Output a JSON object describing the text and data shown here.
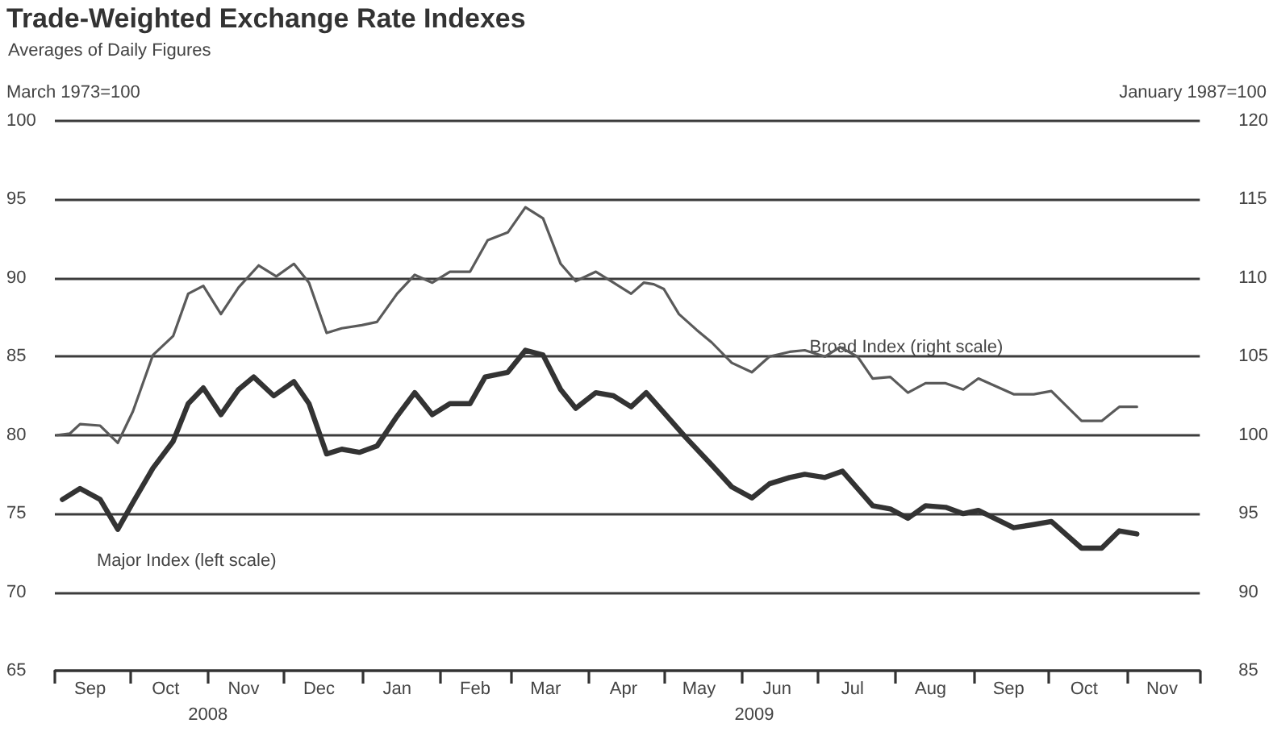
{
  "chart_data": {
    "type": "line",
    "title": "Trade-Weighted Exchange Rate Indexes",
    "subtitle": "Averages of Daily Figures",
    "ylabel": "March 1973=100",
    "y2label": "January 1987=100",
    "annotations": [
      "2008",
      "2009"
    ],
    "xlim": [
      "2008-09-01",
      "2009-11-30"
    ],
    "xticks": [
      {
        "value": "2008-09-01",
        "label": null
      },
      {
        "value": "2008-09-15",
        "label": "Sep"
      },
      {
        "value": "2008-10-01",
        "label": null
      },
      {
        "value": "2008-10-15",
        "label": "Oct"
      },
      {
        "value": "2008-11-01",
        "label": null
      },
      {
        "value": "2008-11-15",
        "label": "Nov"
      },
      {
        "value": "2008-12-01",
        "label": null
      },
      {
        "value": "2008-12-15",
        "label": "Dec"
      },
      {
        "value": "2009-01-01",
        "label": null
      },
      {
        "value": "2009-01-15",
        "label": "Jan"
      },
      {
        "value": "2009-02-01",
        "label": null
      },
      {
        "value": "2009-02-15",
        "label": "Feb"
      },
      {
        "value": "2009-03-01",
        "label": null
      },
      {
        "value": "2009-03-15",
        "label": "Mar"
      },
      {
        "value": "2009-04-01",
        "label": null
      },
      {
        "value": "2009-04-15",
        "label": "Apr"
      },
      {
        "value": "2009-05-01",
        "label": null
      },
      {
        "value": "2009-05-15",
        "label": "May"
      },
      {
        "value": "2009-06-01",
        "label": null
      },
      {
        "value": "2009-06-15",
        "label": "Jun"
      },
      {
        "value": "2009-07-01",
        "label": null
      },
      {
        "value": "2009-07-15",
        "label": "Jul"
      },
      {
        "value": "2009-08-01",
        "label": null
      },
      {
        "value": "2009-08-15",
        "label": "Aug"
      },
      {
        "value": "2009-09-01",
        "label": null
      },
      {
        "value": "2009-09-15",
        "label": "Sep"
      },
      {
        "value": "2009-10-01",
        "label": null
      },
      {
        "value": "2009-10-15",
        "label": "Oct"
      },
      {
        "value": "2009-11-01",
        "label": null
      },
      {
        "value": "2009-11-15",
        "label": "Nov"
      },
      {
        "value": "2009-11-30",
        "label": null
      }
    ],
    "ylim": [
      65,
      100
    ],
    "yticks": [
      65,
      70,
      75,
      80,
      85,
      90,
      95,
      100
    ],
    "y2lim": [
      85,
      120
    ],
    "y2ticks": [
      85,
      90,
      95,
      100,
      105,
      110,
      115,
      120
    ],
    "grid": "y",
    "legend": false,
    "marker": "none",
    "line_style": "solid",
    "series": [
      {
        "name": "Major Index (left scale)",
        "color": "#333333",
        "x": [
          "2008-09-04",
          "2008-09-11",
          "2008-09-19",
          "2008-09-26",
          "2008-10-02",
          "2008-10-10",
          "2008-10-18",
          "2008-10-24",
          "2008-10-30",
          "2008-11-06",
          "2008-11-13",
          "2008-11-19",
          "2008-11-27",
          "2008-12-05",
          "2008-12-11",
          "2008-12-18",
          "2008-12-24",
          "2008-12-31",
          "2009-01-07",
          "2009-01-15",
          "2009-01-22",
          "2009-01-29",
          "2009-02-05",
          "2009-02-13",
          "2009-02-19",
          "2009-02-28",
          "2009-03-07",
          "2009-03-14",
          "2009-03-21",
          "2009-03-27",
          "2009-04-04",
          "2009-04-11",
          "2009-04-18",
          "2009-04-24",
          "2009-05-10",
          "2009-05-20",
          "2009-05-28",
          "2009-06-05",
          "2009-06-12",
          "2009-06-20",
          "2009-06-26",
          "2009-07-04",
          "2009-07-11",
          "2009-07-23",
          "2009-07-30",
          "2009-08-06",
          "2009-08-13",
          "2009-08-21",
          "2009-08-28",
          "2009-09-03",
          "2009-09-17",
          "2009-09-25",
          "2009-10-02",
          "2009-10-14",
          "2009-10-22",
          "2009-10-29",
          "2009-11-05"
        ],
        "values": [
          75.9,
          76.6,
          75.9,
          74.0,
          75.7,
          77.9,
          79.6,
          82.0,
          83.0,
          81.3,
          82.9,
          83.7,
          82.5,
          83.4,
          82.0,
          78.8,
          79.1,
          78.9,
          79.3,
          81.2,
          82.7,
          81.3,
          82.0,
          82.0,
          83.7,
          84.0,
          85.4,
          85.1,
          82.9,
          81.7,
          82.7,
          82.5,
          81.8,
          82.7,
          79.8,
          78.1,
          76.7,
          76.0,
          76.9,
          77.3,
          77.5,
          77.3,
          77.7,
          75.5,
          75.3,
          74.7,
          75.5,
          75.4,
          75.0,
          75.2,
          74.1,
          74.3,
          74.5,
          72.8,
          72.8,
          73.9,
          73.7
        ]
      },
      {
        "name": "Broad Index (right scale)",
        "color": "#5a5a5a",
        "axis": "y2",
        "x": [
          "2008-09-02",
          "2008-09-07",
          "2008-09-11",
          "2008-09-19",
          "2008-09-26",
          "2008-10-02",
          "2008-10-10",
          "2008-10-18",
          "2008-10-24",
          "2008-10-30",
          "2008-11-06",
          "2008-11-13",
          "2008-11-21",
          "2008-11-28",
          "2008-12-05",
          "2008-12-11",
          "2008-12-18",
          "2008-12-24",
          "2009-01-01",
          "2009-01-07",
          "2009-01-15",
          "2009-01-22",
          "2009-01-29",
          "2009-02-05",
          "2009-02-13",
          "2009-02-20",
          "2009-02-28",
          "2009-03-07",
          "2009-03-14",
          "2009-03-21",
          "2009-03-27",
          "2009-04-04",
          "2009-04-11",
          "2009-04-18",
          "2009-04-23",
          "2009-04-27",
          "2009-05-01",
          "2009-05-07",
          "2009-05-14",
          "2009-05-20",
          "2009-05-28",
          "2009-06-05",
          "2009-06-12",
          "2009-06-20",
          "2009-06-26",
          "2009-07-04",
          "2009-07-10",
          "2009-07-17",
          "2009-07-23",
          "2009-07-30",
          "2009-08-06",
          "2009-08-13",
          "2009-08-21",
          "2009-08-28",
          "2009-09-03",
          "2009-09-17",
          "2009-09-25",
          "2009-10-02",
          "2009-10-14",
          "2009-10-22",
          "2009-10-29",
          "2009-11-05"
        ],
        "values": [
          100.0,
          100.1,
          100.7,
          100.6,
          99.5,
          101.5,
          105.1,
          106.3,
          109.0,
          109.5,
          107.7,
          109.4,
          110.8,
          110.1,
          110.9,
          109.7,
          106.5,
          106.8,
          107.0,
          107.2,
          109.0,
          110.2,
          109.7,
          110.4,
          110.4,
          112.4,
          112.9,
          114.5,
          113.8,
          110.9,
          109.8,
          110.4,
          109.7,
          109.0,
          109.7,
          109.6,
          109.3,
          107.7,
          106.7,
          105.9,
          104.6,
          104.0,
          105.0,
          105.3,
          105.4,
          105.0,
          105.6,
          105.0,
          103.6,
          103.7,
          102.7,
          103.3,
          103.3,
          102.9,
          103.6,
          102.6,
          102.6,
          102.8,
          100.9,
          100.9,
          101.8,
          101.8
        ]
      }
    ]
  }
}
